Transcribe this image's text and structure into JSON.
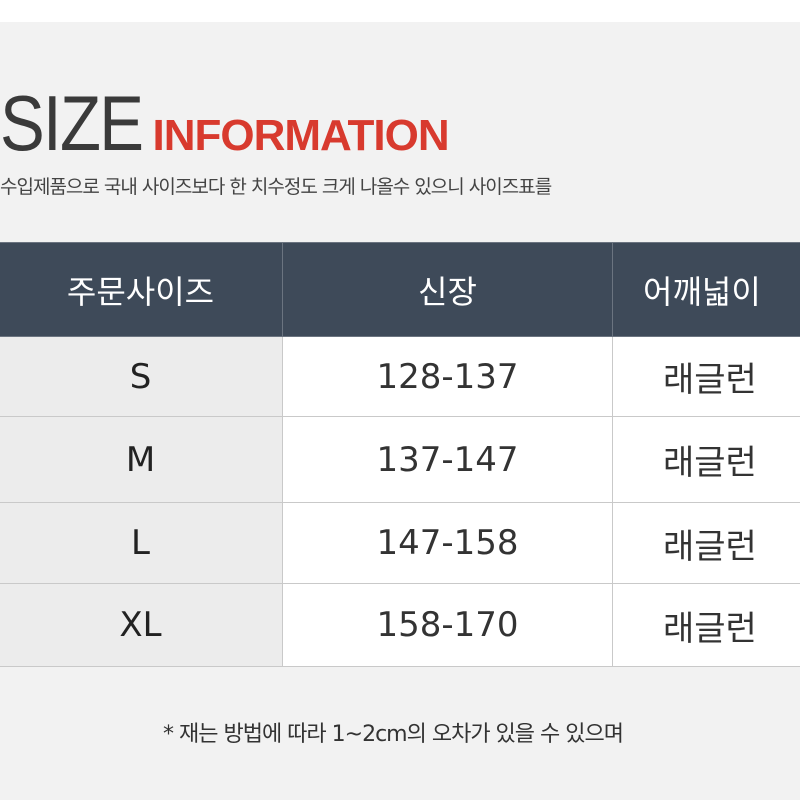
{
  "header": {
    "title_main": "SIZE",
    "title_accent": "INFORMATION",
    "subtitle": "수입제품으로 국내 사이즈보다 한 치수정도 크게 나올수 있으니 사이즈표를"
  },
  "table": {
    "columns": [
      "주문사이즈",
      "신장",
      "어깨넓이"
    ],
    "rows": [
      [
        "S",
        "128-137",
        "래글런"
      ],
      [
        "M",
        "137-147",
        "래글런"
      ],
      [
        "L",
        "147-158",
        "래글런"
      ],
      [
        "XL",
        "158-170",
        "래글런"
      ]
    ]
  },
  "footnote": "* 재는 방법에 따라 1~2cm의 오차가 있을 수 있으며"
}
